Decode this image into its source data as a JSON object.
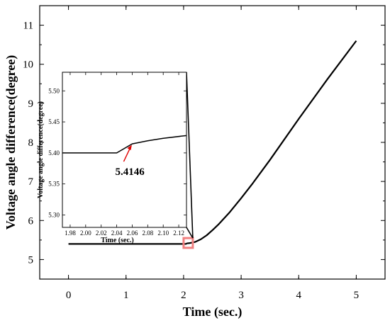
{
  "chart_data": [
    {
      "type": "line",
      "xlabel": "Time (sec.)",
      "ylabel": "Voltage angle difference(degree)",
      "xlim": [
        -0.5,
        5.5
      ],
      "ylim": [
        4.5,
        11.5
      ],
      "xticks": [
        0,
        1,
        2,
        3,
        4,
        5
      ],
      "yticks": [
        5,
        6,
        7,
        8,
        9,
        10,
        11
      ],
      "grid": false,
      "series": [
        {
          "x": [
            0,
            0.5,
            1.0,
            1.5,
            2.0,
            2.04,
            2.06,
            2.1,
            2.2,
            2.3,
            2.4,
            2.5,
            2.6,
            2.8,
            3.0,
            3.2,
            3.5,
            4.0,
            4.5,
            5.0
          ],
          "y": [
            5.4,
            5.4,
            5.4,
            5.4,
            5.4,
            5.4,
            5.4146,
            5.42,
            5.45,
            5.52,
            5.62,
            5.75,
            5.89,
            6.21,
            6.57,
            6.95,
            7.55,
            8.6,
            9.62,
            10.6
          ]
        }
      ],
      "highlight_box": {
        "x": [
          2.0,
          2.16
        ],
        "y": [
          5.3,
          5.55
        ],
        "color": "#f08080"
      }
    },
    {
      "type": "line",
      "role": "inset",
      "xlabel": "Time (sec.)",
      "ylabel": "Voltage angle difference(degree)",
      "xlim": [
        1.97,
        2.13
      ],
      "ylim": [
        5.28,
        5.53
      ],
      "xticks": [
        1.98,
        2.0,
        2.02,
        2.04,
        2.06,
        2.08,
        2.1,
        2.12
      ],
      "xtick_labels": [
        "1.98",
        "2.00",
        "2.02",
        "2.04",
        "2.06",
        "2.08",
        "2.10",
        "2.12"
      ],
      "yticks": [
        5.3,
        5.35,
        5.4,
        5.45,
        5.5
      ],
      "ytick_labels": [
        "5.30",
        "5.35",
        "5.40",
        "5.45",
        "5.50"
      ],
      "series": [
        {
          "x": [
            1.97,
            2.04,
            2.06,
            2.08,
            2.1,
            2.13
          ],
          "y": [
            5.4,
            5.4,
            5.4146,
            5.4195,
            5.4235,
            5.428
          ]
        }
      ],
      "annotation": {
        "text": "5.4146",
        "x": 2.06,
        "y": 5.4146,
        "arrow_color": "#e00000"
      }
    }
  ]
}
